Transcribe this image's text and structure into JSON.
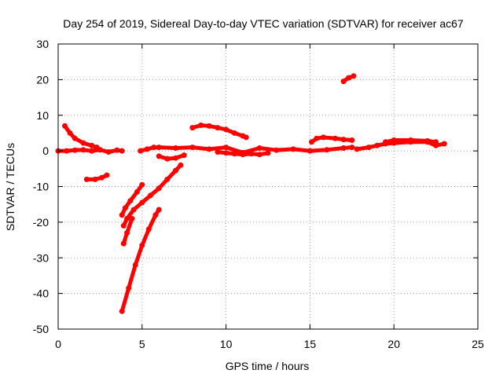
{
  "chart_data": {
    "type": "line",
    "title": "Day 254 of 2019, Sidereal Day-to-day VTEC variation (SDTVAR) for receiver ac67",
    "xlabel": "GPS time / hours",
    "ylabel": "SDTVAR / TECUs",
    "xlim": [
      0,
      25
    ],
    "ylim": [
      -50,
      30
    ],
    "xticks": [
      0,
      5,
      10,
      15,
      20,
      25
    ],
    "yticks": [
      -50,
      -40,
      -30,
      -20,
      -10,
      0,
      10,
      20,
      30
    ],
    "xtick_labels": [
      "0",
      "5",
      "10",
      "15",
      "20",
      "25"
    ],
    "ytick_labels": [
      "-50",
      "-40",
      "-30",
      "-20",
      "-10",
      "0",
      "10",
      "20",
      "30"
    ],
    "grid": true,
    "legend": "none",
    "series_color": "#ff0000",
    "traces": [
      {
        "x": [
          0.0,
          0.5,
          1.0,
          1.5,
          2.0,
          2.5,
          3.0,
          3.5,
          3.8
        ],
        "y": [
          0.0,
          0.0,
          0.2,
          0.3,
          0.0,
          0.3,
          -0.3,
          0.2,
          0.0
        ]
      },
      {
        "x": [
          0.4,
          0.7,
          1.0,
          1.5,
          2.0,
          2.3
        ],
        "y": [
          7.0,
          5.0,
          3.5,
          2.2,
          1.5,
          1.0
        ]
      },
      {
        "x": [
          1.7,
          2.2,
          2.6,
          2.9
        ],
        "y": [
          -8.0,
          -8.0,
          -7.5,
          -6.8
        ]
      },
      {
        "x": [
          3.8,
          4.0,
          4.3,
          4.7,
          5.0
        ],
        "y": [
          -18.0,
          -16.0,
          -14.0,
          -11.5,
          -9.5
        ]
      },
      {
        "x": [
          3.9,
          4.1,
          4.5,
          5.0,
          5.5,
          6.0,
          6.5,
          7.0,
          7.3
        ],
        "y": [
          -21.0,
          -19.0,
          -16.5,
          -14.5,
          -12.5,
          -10.5,
          -8.0,
          -5.5,
          -4.0
        ]
      },
      {
        "x": [
          3.9,
          4.1,
          4.4
        ],
        "y": [
          -26.0,
          -23.0,
          -19.0
        ]
      },
      {
        "x": [
          3.8,
          4.2,
          4.6,
          5.0,
          5.4,
          5.8,
          6.0
        ],
        "y": [
          -45.0,
          -38.5,
          -32.0,
          -26.5,
          -22.0,
          -18.0,
          -16.5
        ]
      },
      {
        "x": [
          4.9,
          5.3,
          5.7,
          6.0,
          7.0,
          8.0,
          9.0,
          10.0,
          11.0,
          12.0,
          13.0,
          14.0,
          15.0,
          16.0,
          17.0,
          17.5
        ],
        "y": [
          0.0,
          0.5,
          1.0,
          1.0,
          0.8,
          1.0,
          0.5,
          1.0,
          -0.5,
          0.8,
          0.2,
          0.5,
          0.0,
          0.3,
          0.8,
          1.0
        ]
      },
      {
        "x": [
          6.0,
          6.5,
          7.0,
          7.5
        ],
        "y": [
          -1.5,
          -2.2,
          -2.0,
          -1.2
        ]
      },
      {
        "x": [
          8.0,
          8.5,
          9.0,
          9.5,
          10.0,
          10.5,
          11.0,
          11.2
        ],
        "y": [
          6.5,
          7.2,
          7.0,
          6.5,
          6.0,
          5.0,
          4.2,
          3.8
        ]
      },
      {
        "x": [
          9.5,
          10.0,
          10.5,
          11.0,
          11.5,
          12.0,
          12.5
        ],
        "y": [
          -0.3,
          -0.6,
          -0.8,
          -1.0,
          -0.8,
          -1.0,
          -0.6
        ]
      },
      {
        "x": [
          15.1,
          15.4,
          15.8,
          16.5,
          17.0,
          17.5
        ],
        "y": [
          2.5,
          3.5,
          3.8,
          3.5,
          3.2,
          3.0
        ]
      },
      {
        "x": [
          17.0,
          17.3,
          17.6
        ],
        "y": [
          19.5,
          20.5,
          21.0
        ]
      },
      {
        "x": [
          17.8,
          18.5,
          19.0,
          19.5,
          20.0,
          21.0,
          22.0,
          22.5,
          23.0
        ],
        "y": [
          0.5,
          1.0,
          1.5,
          2.0,
          2.2,
          2.5,
          2.5,
          1.5,
          2.0
        ]
      },
      {
        "x": [
          19.5,
          20.0,
          21.0,
          22.0,
          22.5
        ],
        "y": [
          2.5,
          3.0,
          3.0,
          2.8,
          2.5
        ]
      }
    ]
  }
}
